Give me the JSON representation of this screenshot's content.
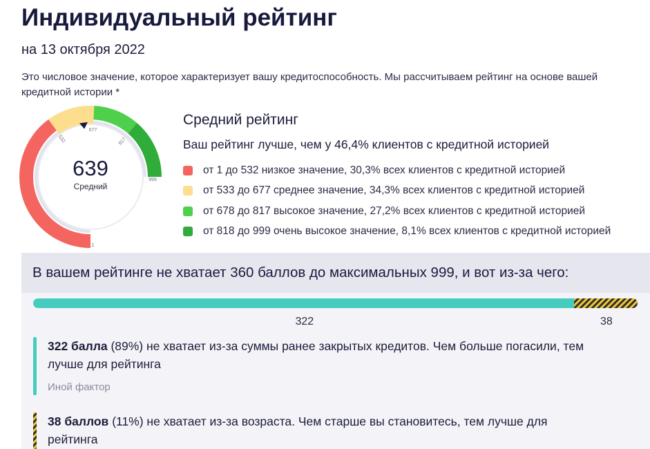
{
  "header": {
    "title": "Индивидуальный рейтинг",
    "date": "на 13 октября 2022",
    "description": "Это числовое значение, которое характеризует вашу кредитоспособность. Мы рассчитываем рейтинг на основе вашей кредитной истории *"
  },
  "gauge": {
    "score": 639,
    "score_text": "639",
    "label": "Средний",
    "min_label": "1",
    "max_label": "999",
    "ticks": [
      "532",
      "677",
      "817"
    ],
    "segments": [
      {
        "from": 1,
        "to": 532,
        "color": "#f5655f"
      },
      {
        "from": 533,
        "to": 677,
        "color": "#fcde8e"
      },
      {
        "from": 678,
        "to": 817,
        "color": "#4fd04c"
      },
      {
        "from": 818,
        "to": 999,
        "color": "#30ac3a"
      }
    ],
    "track_color": "#e3e3ef"
  },
  "summary": {
    "title": "Средний рейтинг",
    "better_text": "Ваш рейтинг лучше, чем у 46,4% клиентов с кредитной историей"
  },
  "legend": [
    {
      "text": "от 1 до 532 низкое значение, 30,3% всех клиентов с кредитной историей",
      "color": "#f5655f"
    },
    {
      "text": "от 533 до 677 среднее значение, 34,3% всех клиентов с кредитной историей",
      "color": "#fcde8e"
    },
    {
      "text": "от 678 до 817 высокое значение, 27,2% всех клиентов с кредитной историей",
      "color": "#4fd04c"
    },
    {
      "text": "от 818 до 999 очень высокое значение, 8,1% всех клиентов с кредитной историей",
      "color": "#30ac3a"
    }
  ],
  "missing": {
    "headline": "В вашем рейтинге не хватает 360 баллов до максимальных 999, и вот из-за чего:",
    "bar": {
      "primary": 322,
      "secondary": 38,
      "primary_text": "322",
      "secondary_text": "38",
      "primary_color": "#45ccbf"
    },
    "factors": [
      {
        "bold": "322 балла",
        "text": " (89%) не хватает из-за суммы ранее закрытых кредитов. Чем больше погасили, тем лучше для рейтинга",
        "tag": "Иной фактор"
      },
      {
        "bold": "38 баллов",
        "text": " (11%) не хватает из-за возраста. Чем старше вы становитесь, тем лучше для рейтинга",
        "tag": ""
      }
    ]
  }
}
